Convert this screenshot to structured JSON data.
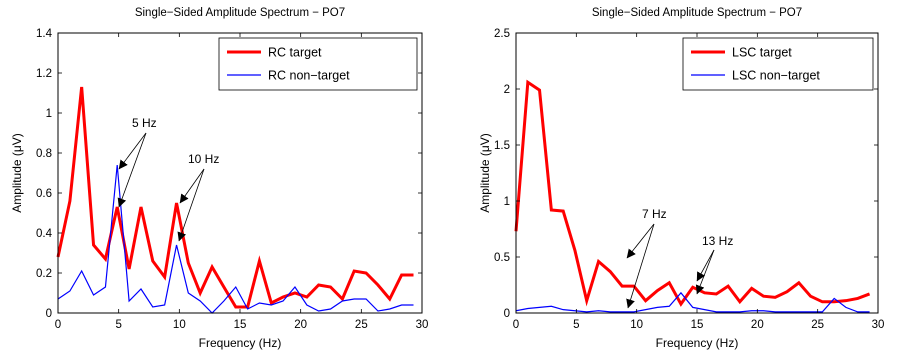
{
  "chart_data": [
    {
      "type": "line",
      "title": "Single−Sided Amplitude Spectrum − PO7",
      "xlabel": "Frequency (Hz)",
      "ylabel": "Amplitude  (μV)",
      "xlim": [
        0,
        30
      ],
      "ylim": [
        0,
        1.4
      ],
      "xticks": [
        0,
        5,
        10,
        15,
        20,
        25,
        30
      ],
      "xtick_labels": [
        "0",
        "5",
        "10",
        "15",
        "20",
        "25",
        "30"
      ],
      "yticks": [
        0,
        0.2,
        0.4,
        0.6,
        0.8,
        1,
        1.2,
        1.4
      ],
      "ytick_labels": [
        "0",
        "0.2",
        "0.4",
        "0.6",
        "0.8",
        "1",
        "1.2",
        "1.4"
      ],
      "grid": false,
      "legend": "top-right",
      "x": [
        0,
        0.98,
        1.95,
        2.93,
        3.91,
        4.88,
        5.86,
        6.84,
        7.81,
        8.79,
        9.77,
        10.74,
        11.72,
        12.7,
        13.67,
        14.65,
        15.63,
        16.6,
        17.58,
        18.55,
        19.53,
        20.51,
        21.48,
        22.46,
        23.44,
        24.41,
        25.39,
        26.37,
        27.34,
        28.32,
        29.3
      ],
      "series": [
        {
          "name": "RC target",
          "color": "#ff0000",
          "values": [
            0.28,
            0.56,
            1.13,
            0.34,
            0.27,
            0.53,
            0.22,
            0.53,
            0.26,
            0.18,
            0.55,
            0.25,
            0.1,
            0.23,
            0.13,
            0.03,
            0.03,
            0.26,
            0.05,
            0.08,
            0.1,
            0.08,
            0.14,
            0.13,
            0.07,
            0.21,
            0.2,
            0.14,
            0.07,
            0.19,
            0.19
          ]
        },
        {
          "name": "RC non−target",
          "color": "#0000ff",
          "values": [
            0.07,
            0.11,
            0.21,
            0.09,
            0.13,
            0.74,
            0.06,
            0.12,
            0.03,
            0.04,
            0.34,
            0.1,
            0.06,
            0.0,
            0.06,
            0.13,
            0.02,
            0.05,
            0.04,
            0.06,
            0.13,
            0.04,
            0.01,
            0.02,
            0.06,
            0.07,
            0.07,
            0.01,
            0.02,
            0.04,
            0.04
          ]
        }
      ],
      "annotations": [
        {
          "label": "5 Hz",
          "arrows": [
            [
              5,
              0.74
            ],
            [
              5,
              0.53
            ]
          ]
        },
        {
          "label": "10 Hz",
          "arrows": [
            [
              10,
              0.55
            ],
            [
              10,
              0.34
            ]
          ]
        }
      ]
    },
    {
      "type": "line",
      "title": "Single−Sided Amplitude Spectrum − PO7",
      "xlabel": "Frequency (Hz)",
      "ylabel": "Amplitude  (μV)",
      "xlim": [
        0,
        30
      ],
      "ylim": [
        0,
        2.5
      ],
      "xticks": [
        0,
        5,
        10,
        15,
        20,
        25,
        30
      ],
      "xtick_labels": [
        "0",
        "5",
        "10",
        "15",
        "20",
        "25",
        "30"
      ],
      "yticks": [
        0,
        0.5,
        1,
        1.5,
        2,
        2.5
      ],
      "ytick_labels": [
        "0",
        "0.5",
        "1",
        "1.5",
        "2",
        "2.5"
      ],
      "grid": false,
      "legend": "top-right",
      "x": [
        0,
        0.98,
        1.95,
        2.93,
        3.91,
        4.88,
        5.86,
        6.84,
        7.81,
        8.79,
        9.77,
        10.74,
        11.72,
        12.7,
        13.67,
        14.65,
        15.63,
        16.6,
        17.58,
        18.55,
        19.53,
        20.51,
        21.48,
        22.46,
        23.44,
        24.41,
        25.39,
        26.37,
        27.34,
        28.32,
        29.3
      ],
      "series": [
        {
          "name": "LSC target",
          "color": "#ff0000",
          "values": [
            0.73,
            2.06,
            1.99,
            0.92,
            0.91,
            0.56,
            0.11,
            0.46,
            0.37,
            0.24,
            0.24,
            0.11,
            0.2,
            0.27,
            0.08,
            0.23,
            0.18,
            0.17,
            0.24,
            0.1,
            0.22,
            0.15,
            0.14,
            0.19,
            0.27,
            0.15,
            0.1,
            0.1,
            0.11,
            0.13,
            0.17
          ]
        },
        {
          "name": "LSC non−target",
          "color": "#0000ff",
          "values": [
            0.02,
            0.04,
            0.05,
            0.06,
            0.03,
            0.02,
            0.01,
            0.02,
            0.01,
            0.01,
            0.01,
            0.03,
            0.05,
            0.06,
            0.18,
            0.05,
            0.03,
            0.01,
            0.01,
            0.01,
            0.02,
            0.02,
            0.01,
            0.01,
            0.01,
            0.01,
            0.01,
            0.13,
            0.05,
            0.01,
            0.01
          ]
        }
      ],
      "annotations": [
        {
          "label": "7 Hz",
          "arrows": [
            [
              7,
              0.46
            ],
            [
              7,
              0.02
            ]
          ]
        },
        {
          "label": "13 Hz",
          "arrows": [
            [
              13.3,
              0.27
            ],
            [
              13.3,
              0.18
            ]
          ]
        }
      ]
    }
  ]
}
